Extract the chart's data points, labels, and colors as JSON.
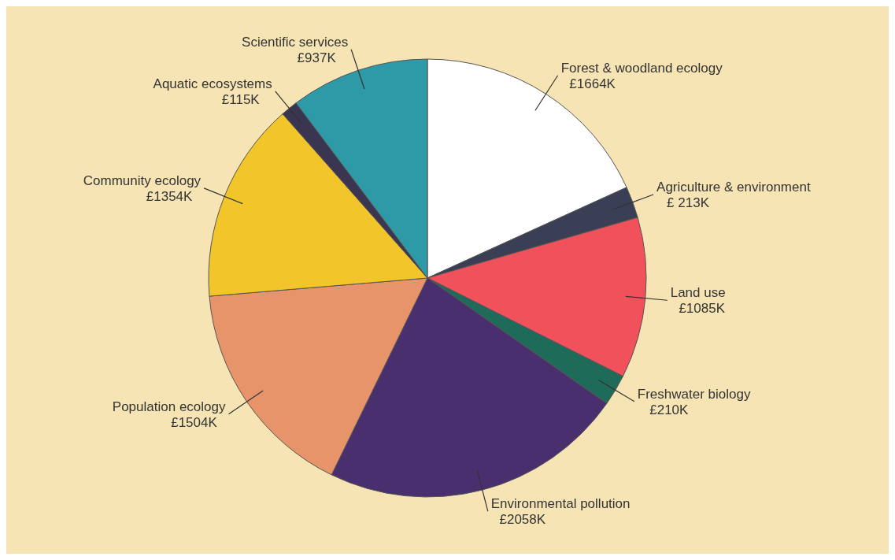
{
  "chart_data": {
    "type": "pie",
    "categories": [
      "Forest & woodland ecology",
      "Agriculture & environment",
      "Land use",
      "Freshwater biology",
      "Environmental pollution",
      "Population ecology",
      "Community ecology",
      "Aquatic ecosystems",
      "Scientific services"
    ],
    "values": [
      1664,
      213,
      1085,
      210,
      2058,
      1504,
      1354,
      115,
      937
    ],
    "value_labels": [
      "£1664K",
      "£ 213K",
      "£1085K",
      "£210K",
      "£2058K",
      "£1504K",
      "£1354K",
      "£115K",
      "£937K"
    ],
    "colors": [
      "#ffffff",
      "#3a3f55",
      "#f0515a",
      "#1f6b5a",
      "#4a2f6e",
      "#e8946a",
      "#f2c62a",
      "#3a3550",
      "#2e9aa8"
    ]
  }
}
